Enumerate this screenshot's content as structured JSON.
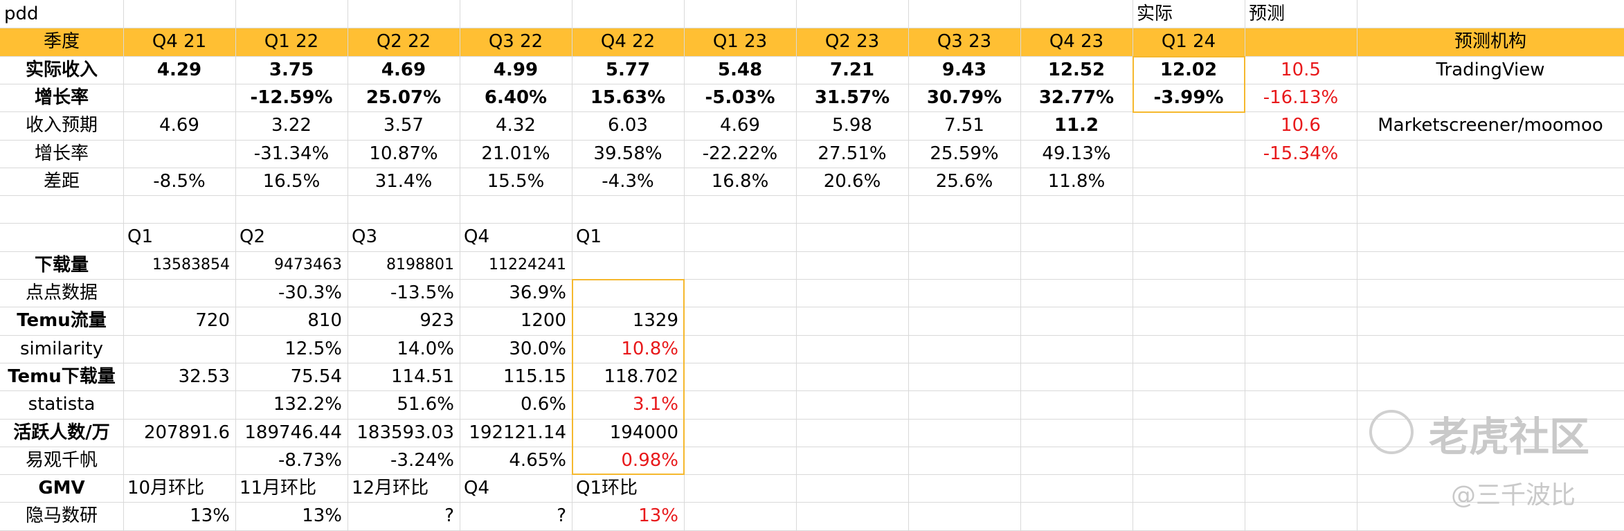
{
  "sheet": {
    "title": "pdd",
    "colors": {
      "header_bar": "#ffbf33",
      "grid": "#d9d9d9",
      "highlight_border": "#f5b82e",
      "red_text": "#e8191b"
    },
    "rows": [
      {
        "name": "row-1",
        "cells": [
          {
            "col": 0,
            "text": "pdd",
            "align": "l"
          },
          {
            "col": 10,
            "text": "实际",
            "align": "l"
          },
          {
            "col": 11,
            "text": "预测",
            "align": "l"
          }
        ]
      },
      {
        "name": "row-2-header",
        "header": true,
        "cells": [
          {
            "col": 0,
            "text": "季度",
            "align": "c"
          },
          {
            "col": 1,
            "text": "Q4 21",
            "align": "c"
          },
          {
            "col": 2,
            "text": "Q1 22",
            "align": "c"
          },
          {
            "col": 3,
            "text": "Q2 22",
            "align": "c"
          },
          {
            "col": 4,
            "text": "Q3 22",
            "align": "c"
          },
          {
            "col": 5,
            "text": "Q4 22",
            "align": "c"
          },
          {
            "col": 6,
            "text": "Q1 23",
            "align": "c"
          },
          {
            "col": 7,
            "text": "Q2 23",
            "align": "c"
          },
          {
            "col": 8,
            "text": "Q3 23",
            "align": "c"
          },
          {
            "col": 9,
            "text": "Q4 23",
            "align": "c"
          },
          {
            "col": 10,
            "text": "Q1 24",
            "align": "c"
          },
          {
            "col": 12,
            "text": "预测机构",
            "align": "c"
          }
        ]
      },
      {
        "name": "row-3",
        "cells": [
          {
            "col": 0,
            "text": "实际收入",
            "align": "c",
            "bold": true
          },
          {
            "col": 1,
            "text": "4.29",
            "align": "c",
            "bold": true
          },
          {
            "col": 2,
            "text": "3.75",
            "align": "c",
            "bold": true
          },
          {
            "col": 3,
            "text": "4.69",
            "align": "c",
            "bold": true
          },
          {
            "col": 4,
            "text": "4.99",
            "align": "c",
            "bold": true
          },
          {
            "col": 5,
            "text": "5.77",
            "align": "c",
            "bold": true
          },
          {
            "col": 6,
            "text": "5.48",
            "align": "c",
            "bold": true
          },
          {
            "col": 7,
            "text": "7.21",
            "align": "c",
            "bold": true
          },
          {
            "col": 8,
            "text": "9.43",
            "align": "c",
            "bold": true
          },
          {
            "col": 9,
            "text": "12.52",
            "align": "c",
            "bold": true
          },
          {
            "col": 10,
            "text": "12.02",
            "align": "c",
            "bold": true
          },
          {
            "col": 11,
            "text": "10.5",
            "align": "c",
            "red": true
          },
          {
            "col": 12,
            "text": "TradingView",
            "align": "c"
          }
        ]
      },
      {
        "name": "row-4",
        "cells": [
          {
            "col": 0,
            "text": "增长率",
            "align": "c",
            "bold": true
          },
          {
            "col": 2,
            "text": "-12.59%",
            "align": "c",
            "bold": true
          },
          {
            "col": 3,
            "text": "25.07%",
            "align": "c",
            "bold": true
          },
          {
            "col": 4,
            "text": "6.40%",
            "align": "c",
            "bold": true
          },
          {
            "col": 5,
            "text": "15.63%",
            "align": "c",
            "bold": true
          },
          {
            "col": 6,
            "text": "-5.03%",
            "align": "c",
            "bold": true
          },
          {
            "col": 7,
            "text": "31.57%",
            "align": "c",
            "bold": true
          },
          {
            "col": 8,
            "text": "30.79%",
            "align": "c",
            "bold": true
          },
          {
            "col": 9,
            "text": "32.77%",
            "align": "c",
            "bold": true
          },
          {
            "col": 10,
            "text": "-3.99%",
            "align": "c",
            "bold": true
          },
          {
            "col": 11,
            "text": "-16.13%",
            "align": "c",
            "red": true
          }
        ]
      },
      {
        "name": "row-5",
        "cells": [
          {
            "col": 0,
            "text": "收入预期",
            "align": "c"
          },
          {
            "col": 1,
            "text": "4.69",
            "align": "c"
          },
          {
            "col": 2,
            "text": "3.22",
            "align": "c"
          },
          {
            "col": 3,
            "text": "3.57",
            "align": "c"
          },
          {
            "col": 4,
            "text": "4.32",
            "align": "c"
          },
          {
            "col": 5,
            "text": "6.03",
            "align": "c"
          },
          {
            "col": 6,
            "text": "4.69",
            "align": "c"
          },
          {
            "col": 7,
            "text": "5.98",
            "align": "c"
          },
          {
            "col": 8,
            "text": "7.51",
            "align": "c"
          },
          {
            "col": 9,
            "text": "11.2",
            "align": "c",
            "bold": true
          },
          {
            "col": 11,
            "text": "10.6",
            "align": "c",
            "red": true
          },
          {
            "col": 12,
            "text": "Marketscreener/moomoo",
            "align": "c"
          }
        ]
      },
      {
        "name": "row-6",
        "cells": [
          {
            "col": 0,
            "text": "增长率",
            "align": "c"
          },
          {
            "col": 2,
            "text": "-31.34%",
            "align": "c"
          },
          {
            "col": 3,
            "text": "10.87%",
            "align": "c"
          },
          {
            "col": 4,
            "text": "21.01%",
            "align": "c"
          },
          {
            "col": 5,
            "text": "39.58%",
            "align": "c"
          },
          {
            "col": 6,
            "text": "-22.22%",
            "align": "c"
          },
          {
            "col": 7,
            "text": "27.51%",
            "align": "c"
          },
          {
            "col": 8,
            "text": "25.59%",
            "align": "c"
          },
          {
            "col": 9,
            "text": "49.13%",
            "align": "c"
          },
          {
            "col": 11,
            "text": "-15.34%",
            "align": "c",
            "red": true
          }
        ]
      },
      {
        "name": "row-7",
        "cells": [
          {
            "col": 0,
            "text": "差距",
            "align": "c"
          },
          {
            "col": 1,
            "text": "-8.5%",
            "align": "c"
          },
          {
            "col": 2,
            "text": "16.5%",
            "align": "c"
          },
          {
            "col": 3,
            "text": "31.4%",
            "align": "c"
          },
          {
            "col": 4,
            "text": "15.5%",
            "align": "c"
          },
          {
            "col": 5,
            "text": "-4.3%",
            "align": "c"
          },
          {
            "col": 6,
            "text": "16.8%",
            "align": "c"
          },
          {
            "col": 7,
            "text": "20.6%",
            "align": "c"
          },
          {
            "col": 8,
            "text": "25.6%",
            "align": "c"
          },
          {
            "col": 9,
            "text": "11.8%",
            "align": "c"
          }
        ]
      },
      {
        "name": "row-8",
        "cells": []
      },
      {
        "name": "row-9",
        "cells": [
          {
            "col": 1,
            "text": "Q1",
            "align": "l"
          },
          {
            "col": 2,
            "text": "Q2",
            "align": "l"
          },
          {
            "col": 3,
            "text": "Q3",
            "align": "l"
          },
          {
            "col": 4,
            "text": "Q4",
            "align": "l"
          },
          {
            "col": 5,
            "text": "Q1",
            "align": "l"
          }
        ]
      },
      {
        "name": "row-10",
        "cells": [
          {
            "col": 0,
            "text": "下载量",
            "align": "c",
            "bold": true
          },
          {
            "col": 1,
            "text": "13583854",
            "align": "r",
            "small": true
          },
          {
            "col": 2,
            "text": "9473463",
            "align": "r",
            "small": true
          },
          {
            "col": 3,
            "text": "8198801",
            "align": "r",
            "small": true
          },
          {
            "col": 4,
            "text": "11224241",
            "align": "r",
            "small": true
          }
        ]
      },
      {
        "name": "row-11",
        "cells": [
          {
            "col": 0,
            "text": "点点数据",
            "align": "c"
          },
          {
            "col": 2,
            "text": "-30.3%",
            "align": "r"
          },
          {
            "col": 3,
            "text": "-13.5%",
            "align": "r"
          },
          {
            "col": 4,
            "text": "36.9%",
            "align": "r"
          }
        ]
      },
      {
        "name": "row-12",
        "cells": [
          {
            "col": 0,
            "text": "Temu流量",
            "align": "c",
            "bold": true
          },
          {
            "col": 1,
            "text": "720",
            "align": "r"
          },
          {
            "col": 2,
            "text": "810",
            "align": "r"
          },
          {
            "col": 3,
            "text": "923",
            "align": "r"
          },
          {
            "col": 4,
            "text": "1200",
            "align": "r"
          },
          {
            "col": 5,
            "text": "1329",
            "align": "r"
          }
        ]
      },
      {
        "name": "row-13",
        "cells": [
          {
            "col": 0,
            "text": "similarity",
            "align": "c"
          },
          {
            "col": 2,
            "text": "12.5%",
            "align": "r"
          },
          {
            "col": 3,
            "text": "14.0%",
            "align": "r"
          },
          {
            "col": 4,
            "text": "30.0%",
            "align": "r"
          },
          {
            "col": 5,
            "text": "10.8%",
            "align": "r",
            "red": true
          }
        ]
      },
      {
        "name": "row-14",
        "cells": [
          {
            "col": 0,
            "text": "Temu下载量",
            "align": "c",
            "bold": true
          },
          {
            "col": 1,
            "text": "32.53",
            "align": "r"
          },
          {
            "col": 2,
            "text": "75.54",
            "align": "r"
          },
          {
            "col": 3,
            "text": "114.51",
            "align": "r"
          },
          {
            "col": 4,
            "text": "115.15",
            "align": "r"
          },
          {
            "col": 5,
            "text": "118.702",
            "align": "r"
          }
        ]
      },
      {
        "name": "row-15",
        "cells": [
          {
            "col": 0,
            "text": "statista",
            "align": "c"
          },
          {
            "col": 2,
            "text": "132.2%",
            "align": "r"
          },
          {
            "col": 3,
            "text": "51.6%",
            "align": "r"
          },
          {
            "col": 4,
            "text": "0.6%",
            "align": "r"
          },
          {
            "col": 5,
            "text": "3.1%",
            "align": "r",
            "red": true
          }
        ]
      },
      {
        "name": "row-16",
        "cells": [
          {
            "col": 0,
            "text": "活跃人数/万",
            "align": "c",
            "bold": true
          },
          {
            "col": 1,
            "text": "207891.6",
            "align": "r"
          },
          {
            "col": 2,
            "text": "189746.44",
            "align": "r"
          },
          {
            "col": 3,
            "text": "183593.03",
            "align": "r"
          },
          {
            "col": 4,
            "text": "192121.14",
            "align": "r"
          },
          {
            "col": 5,
            "text": "194000",
            "align": "r"
          }
        ]
      },
      {
        "name": "row-17",
        "cells": [
          {
            "col": 0,
            "text": "易观千帆",
            "align": "c"
          },
          {
            "col": 2,
            "text": "-8.73%",
            "align": "r"
          },
          {
            "col": 3,
            "text": "-3.24%",
            "align": "r"
          },
          {
            "col": 4,
            "text": "4.65%",
            "align": "r"
          },
          {
            "col": 5,
            "text": "0.98%",
            "align": "r",
            "red": true
          }
        ]
      },
      {
        "name": "row-18",
        "cells": [
          {
            "col": 0,
            "text": "GMV",
            "align": "c",
            "bold": true
          },
          {
            "col": 1,
            "text": "10月环比",
            "align": "l"
          },
          {
            "col": 2,
            "text": "11月环比",
            "align": "l"
          },
          {
            "col": 3,
            "text": "12月环比",
            "align": "l"
          },
          {
            "col": 4,
            "text": "Q4",
            "align": "l"
          },
          {
            "col": 5,
            "text": "Q1环比",
            "align": "l"
          }
        ]
      },
      {
        "name": "row-19",
        "cells": [
          {
            "col": 0,
            "text": "隐马数研",
            "align": "c"
          },
          {
            "col": 1,
            "text": "13%",
            "align": "r"
          },
          {
            "col": 2,
            "text": "13%",
            "align": "r"
          },
          {
            "col": 3,
            "text": "?",
            "align": "r"
          },
          {
            "col": 4,
            "text": "?",
            "align": "r"
          },
          {
            "col": 5,
            "text": "13%",
            "align": "r",
            "red": true
          }
        ]
      }
    ]
  },
  "watermark": {
    "brand": "老虎社区",
    "author": "@三千波比"
  }
}
